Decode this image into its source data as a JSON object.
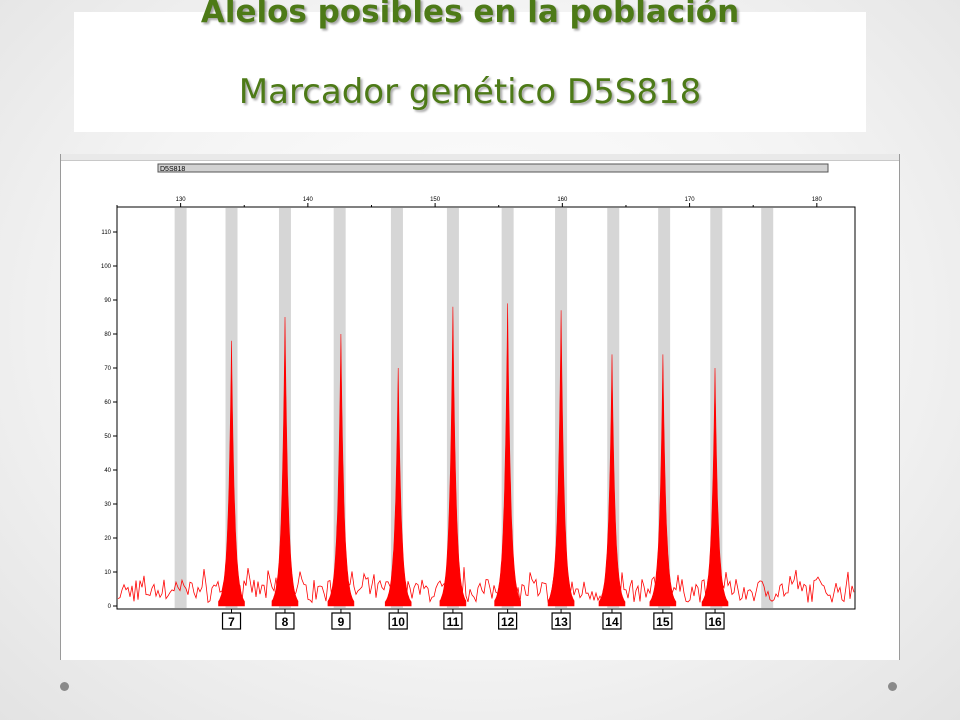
{
  "slide": {
    "title": "Alelos posibles en la población",
    "subtitle": "Marcador genético D5S818"
  },
  "chart_data": {
    "type": "area",
    "marker_label": "D5S818",
    "x_axis": {
      "min": 125,
      "max": 183,
      "ticks": [
        130,
        140,
        150,
        160,
        170,
        180
      ]
    },
    "y_axis": {
      "min": 0,
      "max": 115,
      "ticks": [
        0,
        10,
        20,
        30,
        40,
        50,
        60,
        70,
        80,
        90,
        100,
        110
      ]
    },
    "bins": [
      130,
      134,
      138.2,
      142.5,
      147,
      151.4,
      155.7,
      159.9,
      164,
      168,
      172.1,
      176.1
    ],
    "peaks": [
      {
        "allele": "7",
        "x": 134.0,
        "height": 78
      },
      {
        "allele": "8",
        "x": 138.2,
        "height": 85
      },
      {
        "allele": "9",
        "x": 142.6,
        "height": 80
      },
      {
        "allele": "10",
        "x": 147.1,
        "height": 70
      },
      {
        "allele": "11",
        "x": 151.4,
        "height": 88
      },
      {
        "allele": "12",
        "x": 155.7,
        "height": 89
      },
      {
        "allele": "13",
        "x": 159.9,
        "height": 87
      },
      {
        "allele": "14",
        "x": 163.9,
        "height": 74
      },
      {
        "allele": "15",
        "x": 167.9,
        "height": 74
      },
      {
        "allele": "16",
        "x": 172.0,
        "height": 70
      }
    ],
    "colors": {
      "peak": "#ff0000",
      "bin": "#d6d6d6",
      "axis": "#000000"
    },
    "grid": false
  }
}
